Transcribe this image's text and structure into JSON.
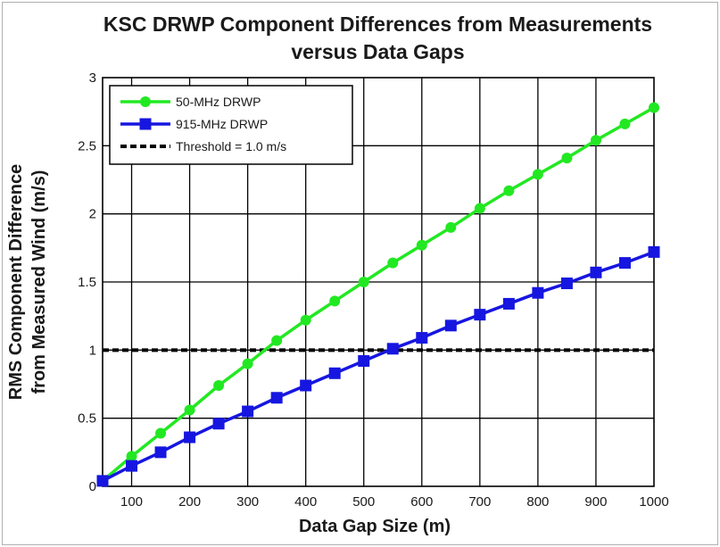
{
  "chart_data": {
    "type": "line",
    "title": "KSC DRWP Component Differences from Measurements",
    "subtitle": "versus Data Gaps",
    "xlabel": "Data Gap Size (m)",
    "ylabel_line1": "RMS Component Difference",
    "ylabel_line2": "from Measured Wind (m/s)",
    "xlim": [
      50,
      1000
    ],
    "ylim": [
      0,
      3
    ],
    "xticks": [
      100,
      200,
      300,
      400,
      500,
      600,
      700,
      800,
      900,
      1000
    ],
    "yticks": [
      0,
      0.5,
      1,
      1.5,
      2,
      2.5,
      3
    ],
    "ytick_labels": [
      "0",
      "0.5",
      "1",
      "1.5",
      "2",
      "2.5",
      "3"
    ],
    "grid": true,
    "legend_position": "top-left",
    "x": [
      50,
      100,
      150,
      200,
      250,
      300,
      350,
      400,
      450,
      500,
      550,
      600,
      650,
      700,
      750,
      800,
      850,
      900,
      950,
      1000
    ],
    "series": [
      {
        "name": "50-MHz DRWP",
        "color": "#22e822",
        "marker": "circle",
        "values": [
          0.04,
          0.22,
          0.39,
          0.56,
          0.74,
          0.9,
          1.07,
          1.22,
          1.36,
          1.5,
          1.64,
          1.77,
          1.9,
          2.04,
          2.17,
          2.29,
          2.41,
          2.54,
          2.66,
          2.78
        ]
      },
      {
        "name": "915-MHz DRWP",
        "color": "#1616e0",
        "marker": "square",
        "values": [
          0.04,
          0.15,
          0.25,
          0.36,
          0.46,
          0.55,
          0.65,
          0.74,
          0.83,
          0.92,
          1.01,
          1.09,
          1.18,
          1.26,
          1.34,
          1.42,
          1.49,
          1.57,
          1.64,
          1.72
        ]
      }
    ],
    "threshold": {
      "name": "Threshold = 1.0 m/s",
      "value": 1.0,
      "color": "#000000",
      "style": "dashed"
    }
  }
}
